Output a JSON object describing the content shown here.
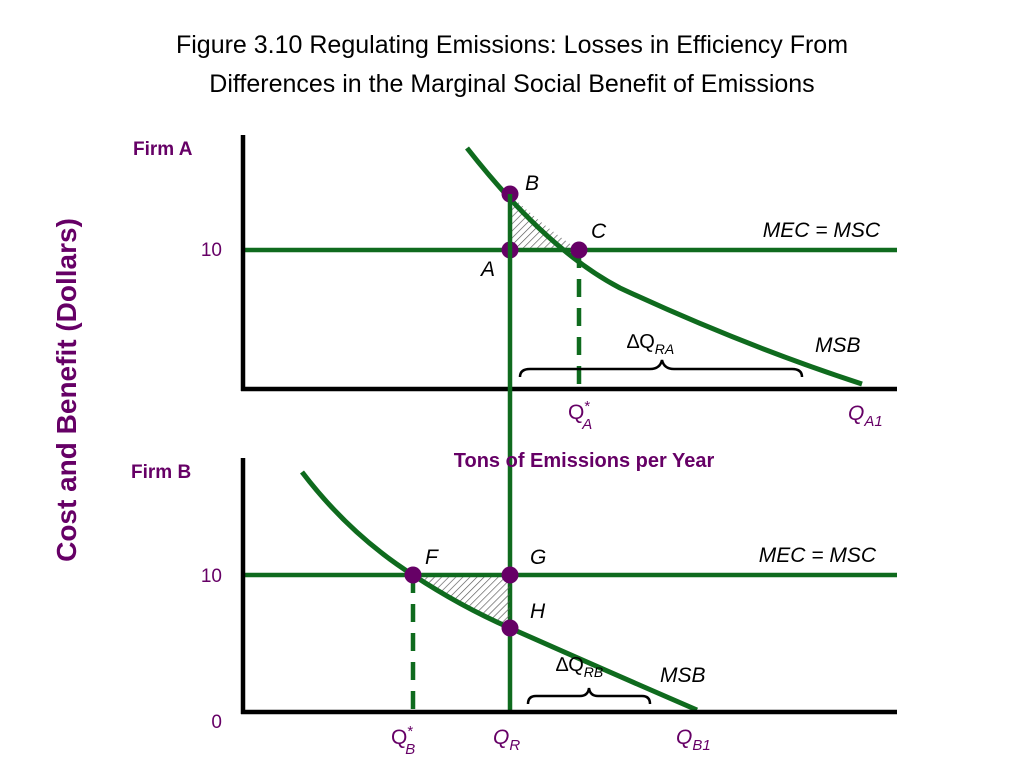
{
  "title": {
    "line1": "Figure 3.10 Regulating Emissions: Losses in Efficiency From",
    "line2": "Differences in the Marginal Social Benefit of Emissions"
  },
  "y_axis_label": "Cost and Benefit (Dollars)",
  "x_axis_label": "Tons of Emissions per Year",
  "colors": {
    "curve": "#0f6b1e",
    "axis": "#000000",
    "point": "#660066",
    "label": "#660066",
    "hatch": "#555555"
  },
  "firm_a": {
    "title": "Firm A",
    "tick_10": "10",
    "mec_label": "MEC = MSC",
    "msb_label": "MSB",
    "points": {
      "b": "B",
      "c": "C",
      "a": "A"
    },
    "delta": {
      "symbol": "∆Q",
      "sub": "RA"
    },
    "q_star": {
      "main": "Q",
      "sup": "*",
      "sub": "A"
    },
    "q_1": {
      "main": "Q",
      "sub": "A1"
    }
  },
  "firm_b": {
    "title": "Firm B",
    "tick_10": "10",
    "tick_0": "0",
    "mec_label": "MEC = MSC",
    "msb_label": "MSB",
    "points": {
      "f": "F",
      "g": "G",
      "h": "H"
    },
    "delta": {
      "symbol": "∆Q",
      "sub": "RB"
    },
    "q_star": {
      "main": "Q",
      "sup": "*",
      "sub": "B"
    },
    "q_r": {
      "main": "Q",
      "sub": "R"
    },
    "q_1": {
      "main": "Q",
      "sub": "B1"
    }
  }
}
